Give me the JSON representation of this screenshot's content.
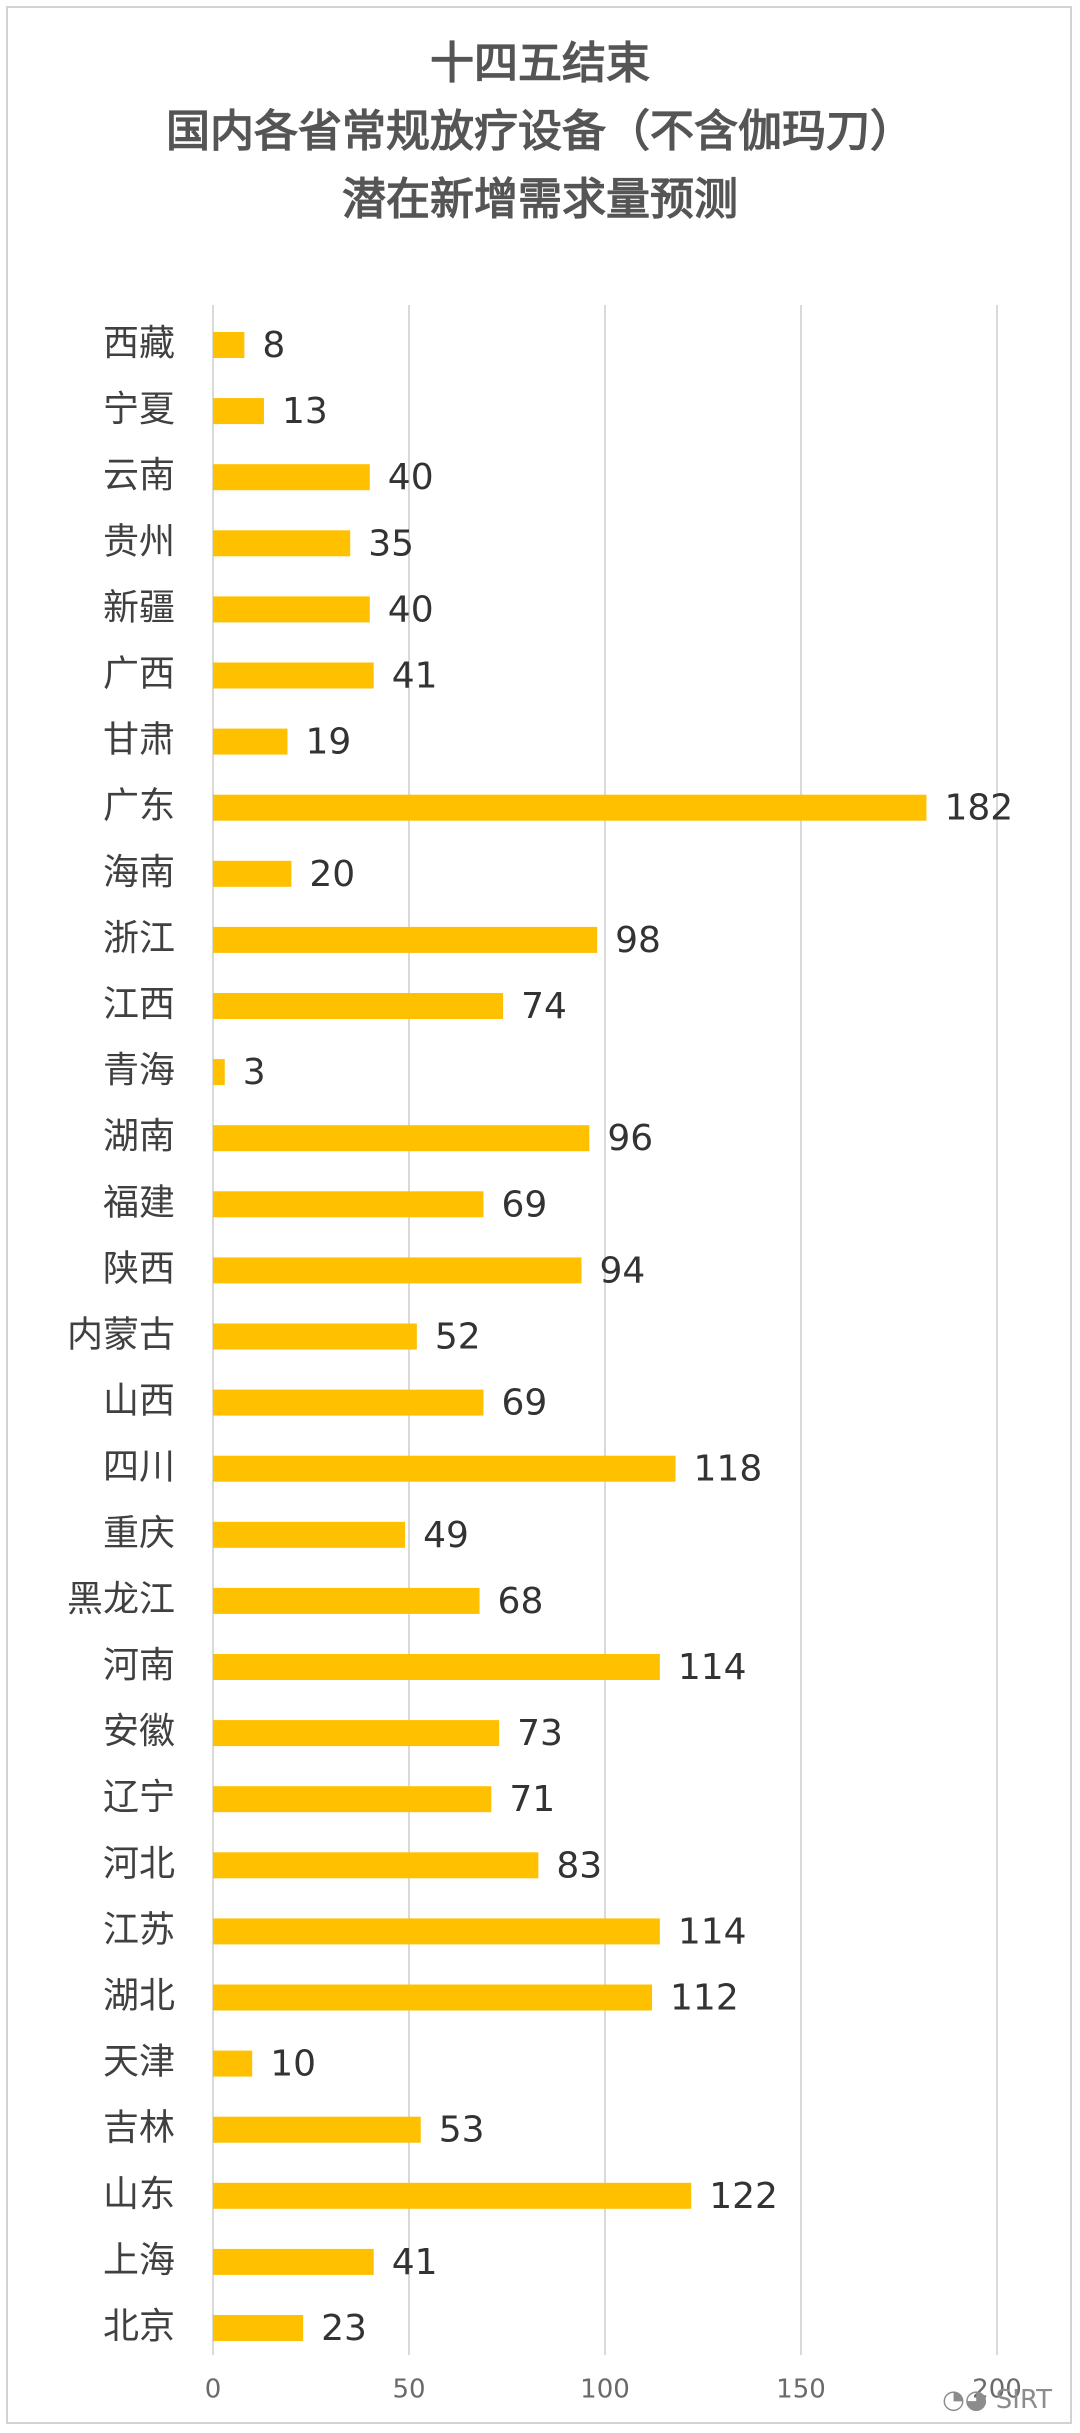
{
  "chart_data": {
    "type": "bar",
    "orientation": "horizontal",
    "title_lines": [
      "十四五结束",
      "国内各省常规放疗设备（不含伽玛刀）",
      "潜在新增需求量预测"
    ],
    "categories": [
      "西藏",
      "宁夏",
      "云南",
      "贵州",
      "新疆",
      "广西",
      "甘肃",
      "广东",
      "海南",
      "浙江",
      "江西",
      "青海",
      "湖南",
      "福建",
      "陕西",
      "内蒙古",
      "山西",
      "四川",
      "重庆",
      "黑龙江",
      "河南",
      "安徽",
      "辽宁",
      "河北",
      "江苏",
      "湖北",
      "天津",
      "吉林",
      "山东",
      "上海",
      "北京"
    ],
    "values": [
      8,
      13,
      40,
      35,
      40,
      41,
      19,
      182,
      20,
      98,
      74,
      3,
      96,
      69,
      94,
      52,
      69,
      118,
      49,
      68,
      114,
      73,
      71,
      83,
      114,
      112,
      10,
      53,
      122,
      41,
      23
    ],
    "xlim": [
      0,
      200
    ],
    "xticks": [
      0,
      50,
      100,
      150,
      200
    ],
    "grid": true,
    "bar_color": "#FFC000",
    "gridline_color": "#d9d9d9"
  },
  "watermark": "SIRT"
}
